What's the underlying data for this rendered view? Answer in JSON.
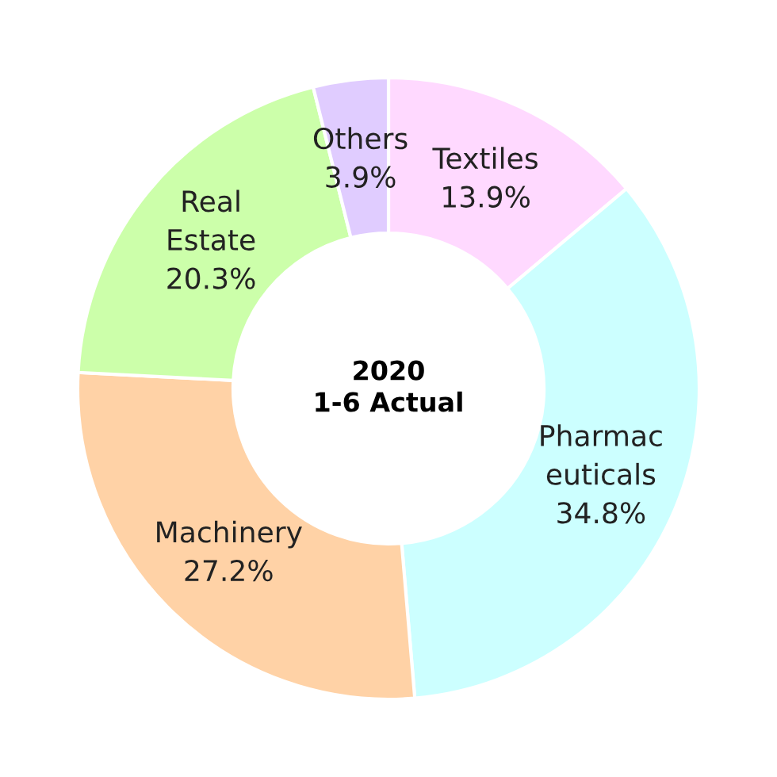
{
  "chart_data": {
    "type": "donut",
    "title": "2020\n1-6 Actual",
    "categories": [
      "Textiles",
      "Pharmac\neuticals",
      "Machinery",
      "Real\nEstate",
      "Others"
    ],
    "values": [
      13.9,
      34.8,
      27.2,
      20.3,
      3.9
    ],
    "colors": [
      "#ffd9ff",
      "#ccffff",
      "#ffd2a6",
      "#ccffaa",
      "#e0ccff"
    ],
    "value_labels": [
      "13.9%",
      "34.8%",
      "27.2%",
      "20.3%",
      "3.9%"
    ]
  }
}
